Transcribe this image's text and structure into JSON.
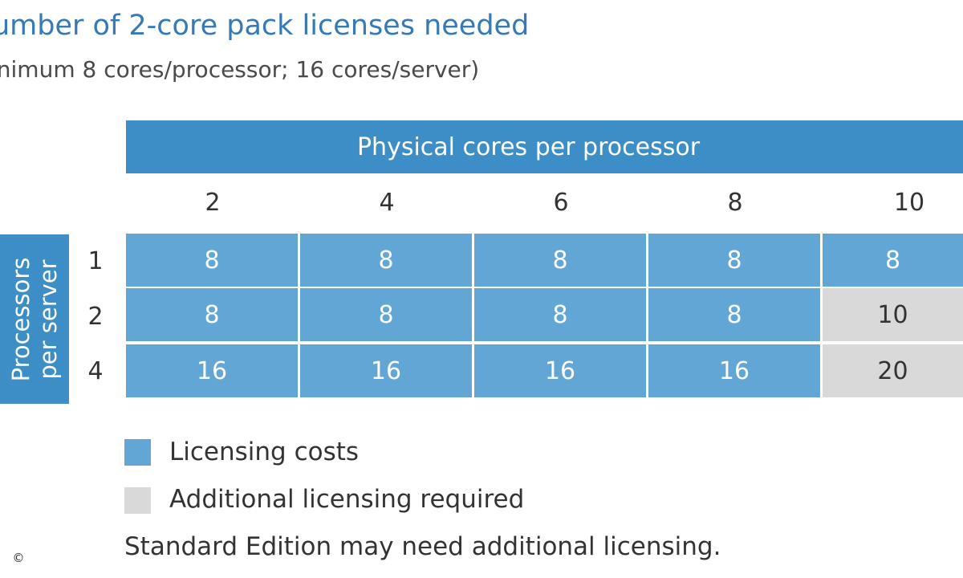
{
  "title": "umber of 2-core pack licenses needed",
  "subtitle": "inimum 8 cores/processor; 16 cores/server)",
  "table": {
    "column_group_label": "Physical cores per processor",
    "row_group_label_line1": "Processors",
    "row_group_label_line2": "per server",
    "columns": [
      "2",
      "4",
      "6",
      "8",
      "10"
    ],
    "rows": [
      {
        "label": "1",
        "cells": [
          {
            "value": "8",
            "status": "cost"
          },
          {
            "value": "8",
            "status": "cost"
          },
          {
            "value": "8",
            "status": "cost"
          },
          {
            "value": "8",
            "status": "cost"
          },
          {
            "value": "8",
            "status": "cost"
          }
        ]
      },
      {
        "label": "2",
        "cells": [
          {
            "value": "8",
            "status": "cost"
          },
          {
            "value": "8",
            "status": "cost"
          },
          {
            "value": "8",
            "status": "cost"
          },
          {
            "value": "8",
            "status": "cost"
          },
          {
            "value": "10",
            "status": "additional"
          }
        ]
      },
      {
        "label": "4",
        "cells": [
          {
            "value": "16",
            "status": "cost"
          },
          {
            "value": "16",
            "status": "cost"
          },
          {
            "value": "16",
            "status": "cost"
          },
          {
            "value": "16",
            "status": "cost"
          },
          {
            "value": "20",
            "status": "additional"
          }
        ]
      }
    ]
  },
  "legend": [
    {
      "label": "Licensing costs",
      "color": "#62a6d6"
    },
    {
      "label": "Additional licensing required",
      "color": "#d9d9d9"
    }
  ],
  "footnote": "Standard Edition may need additional licensing.",
  "copyright_symbol": "©",
  "colors": {
    "title": "#3579b6",
    "header": "#3d8dc7",
    "cost_cell": "#62a6d6",
    "additional_cell": "#d9d9d9"
  }
}
